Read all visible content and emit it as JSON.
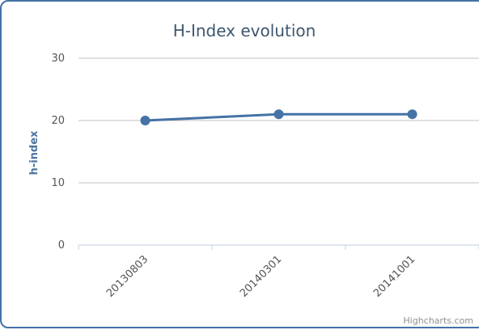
{
  "colors": {
    "series": "#4572a7",
    "frame": "#4572a7",
    "grid": "#c0c0c0",
    "axis": "#c0d0e0",
    "title": "#3e576f",
    "axis_title": "#4d759e",
    "credits": "#909090"
  },
  "credits": "Highcharts.com",
  "chart_data": {
    "type": "line",
    "title": "H-Index evolution",
    "xlabel": "",
    "ylabel": "h-index",
    "categories": [
      "20130803",
      "20140301",
      "20141001"
    ],
    "series": [
      {
        "values": [
          20,
          21,
          21
        ]
      }
    ],
    "ylim": [
      0,
      30
    ],
    "yticks": [
      0,
      10,
      20,
      30
    ],
    "grid": true,
    "legend": "none",
    "markers": true
  }
}
